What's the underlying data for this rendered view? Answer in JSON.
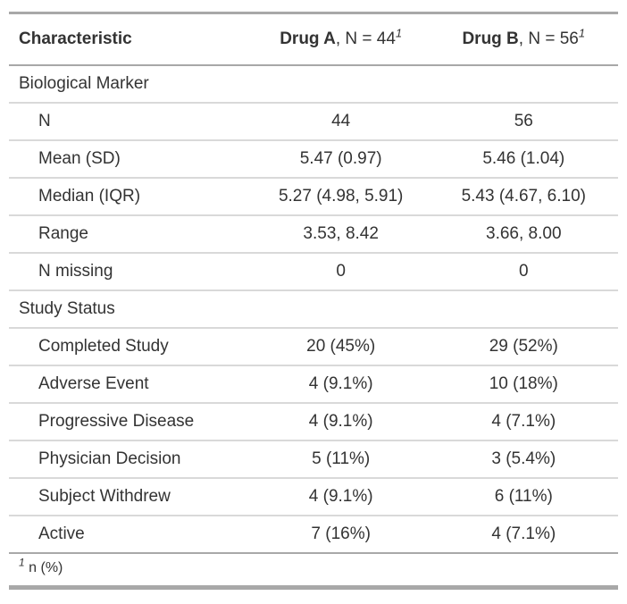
{
  "chart_data": {
    "type": "table",
    "header": {
      "characteristic": "Characteristic",
      "groups": [
        {
          "name": "Drug A",
          "suffix": ", N = 44",
          "footnote_mark": "1"
        },
        {
          "name": "Drug B",
          "suffix": ", N = 56",
          "footnote_mark": "1"
        }
      ]
    },
    "rows": [
      {
        "type": "group",
        "label": "Biological Marker",
        "drug_a": "",
        "drug_b": ""
      },
      {
        "type": "data",
        "label": "N",
        "drug_a": "44",
        "drug_b": "56"
      },
      {
        "type": "data",
        "label": "Mean (SD)",
        "drug_a": "5.47 (0.97)",
        "drug_b": "5.46 (1.04)"
      },
      {
        "type": "data",
        "label": "Median (IQR)",
        "drug_a": "5.27 (4.98, 5.91)",
        "drug_b": "5.43 (4.67, 6.10)"
      },
      {
        "type": "data",
        "label": "Range",
        "drug_a": "3.53, 8.42",
        "drug_b": "3.66, 8.00"
      },
      {
        "type": "data",
        "label": "N missing",
        "drug_a": "0",
        "drug_b": "0"
      },
      {
        "type": "group",
        "label": "Study Status",
        "drug_a": "",
        "drug_b": ""
      },
      {
        "type": "data",
        "label": "Completed Study",
        "drug_a": "20 (45%)",
        "drug_b": "29 (52%)"
      },
      {
        "type": "data",
        "label": "Adverse Event",
        "drug_a": "4 (9.1%)",
        "drug_b": "10 (18%)"
      },
      {
        "type": "data",
        "label": "Progressive Disease",
        "drug_a": "4 (9.1%)",
        "drug_b": "4 (7.1%)"
      },
      {
        "type": "data",
        "label": "Physician Decision",
        "drug_a": "5 (11%)",
        "drug_b": "3 (5.4%)"
      },
      {
        "type": "data",
        "label": "Subject Withdrew",
        "drug_a": "4 (9.1%)",
        "drug_b": "6 (11%)"
      },
      {
        "type": "data",
        "label": "Active",
        "drug_a": "7 (16%)",
        "drug_b": "4 (7.1%)"
      }
    ],
    "footnote": {
      "mark": "1",
      "text": "n (%)"
    }
  },
  "colors": {
    "text": "#333333",
    "border_heavy": "#A8A8A8",
    "border_light": "#D9D9D9",
    "background": "#FFFFFF"
  }
}
